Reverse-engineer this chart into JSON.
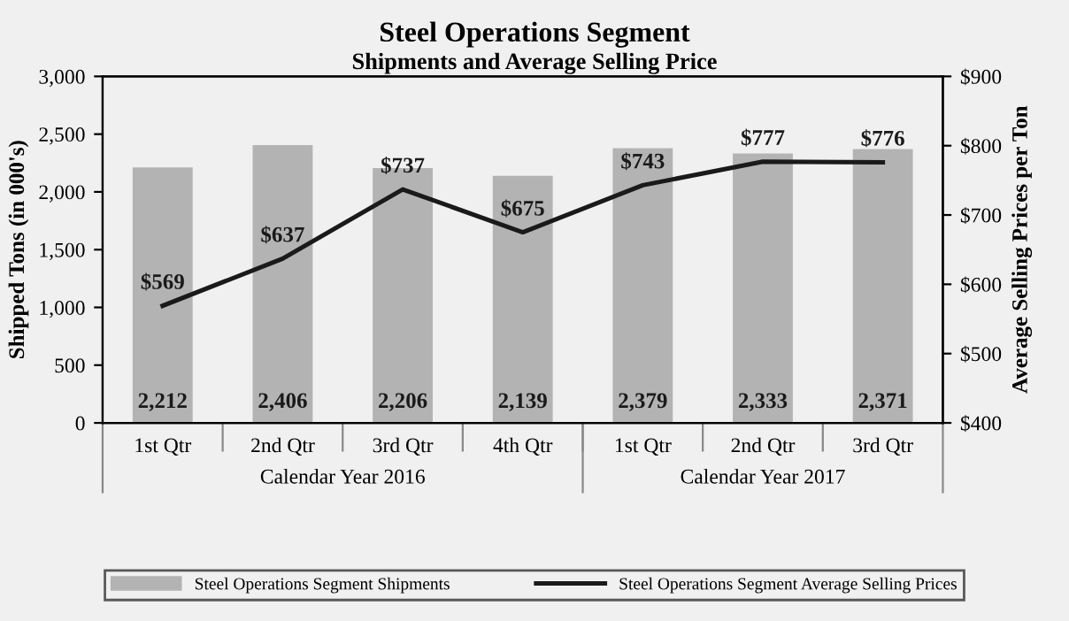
{
  "chart_data": {
    "type": "bar",
    "title": "Steel Operations Segment",
    "subtitle": "Shipments and Average Selling Price",
    "ylabel": "Shipped Tons (in 000's)",
    "y2label": "Average Selling Prices per Ton",
    "categories": [
      "1st Qtr",
      "2nd Qtr",
      "3rd Qtr",
      "4th Qtr",
      "1st Qtr",
      "2nd Qtr",
      "3rd Qtr"
    ],
    "series": [
      {
        "name": "Steel Operations Segment Shipments",
        "color": "#b3b3b3",
        "values": [
          2212,
          2406,
          2206,
          2139,
          2379,
          2333,
          2371
        ],
        "value_labels": [
          "2,212",
          "2,406",
          "2,206",
          "2,139",
          "2,379",
          "2,333",
          "2,371"
        ]
      },
      {
        "name": "Steel Operations Segment Average Selling Prices",
        "type": "line",
        "axis": "y2",
        "color": "#1a1a1a",
        "values": [
          569,
          637,
          737,
          675,
          743,
          777,
          776
        ],
        "value_labels": [
          "$569",
          "$637",
          "$737",
          "$675",
          "$743",
          "$777",
          "$776"
        ]
      }
    ],
    "ylim": [
      0,
      3000
    ],
    "yticks": [
      0,
      500,
      {
        "value": 1000,
        "label": "1,000"
      },
      {
        "value": 1500,
        "label": "1,500"
      },
      {
        "value": 2000,
        "label": "2,000"
      },
      {
        "value": 2500,
        "label": "2,500"
      },
      {
        "value": 3000,
        "label": "3,000"
      }
    ],
    "y2lim": [
      400,
      900
    ],
    "y2ticks": [
      {
        "value": 400,
        "label": "$400"
      },
      {
        "value": 500,
        "label": "$500"
      },
      {
        "value": 600,
        "label": "$600"
      },
      {
        "value": 700,
        "label": "$700"
      },
      {
        "value": 800,
        "label": "$800"
      },
      {
        "value": 900,
        "label": "$900"
      }
    ],
    "annotations": [
      "Calendar Year 2016",
      "Calendar Year 2017"
    ],
    "legend": "bottom",
    "grid": false,
    "marker": "none",
    "line_style": "solid"
  }
}
